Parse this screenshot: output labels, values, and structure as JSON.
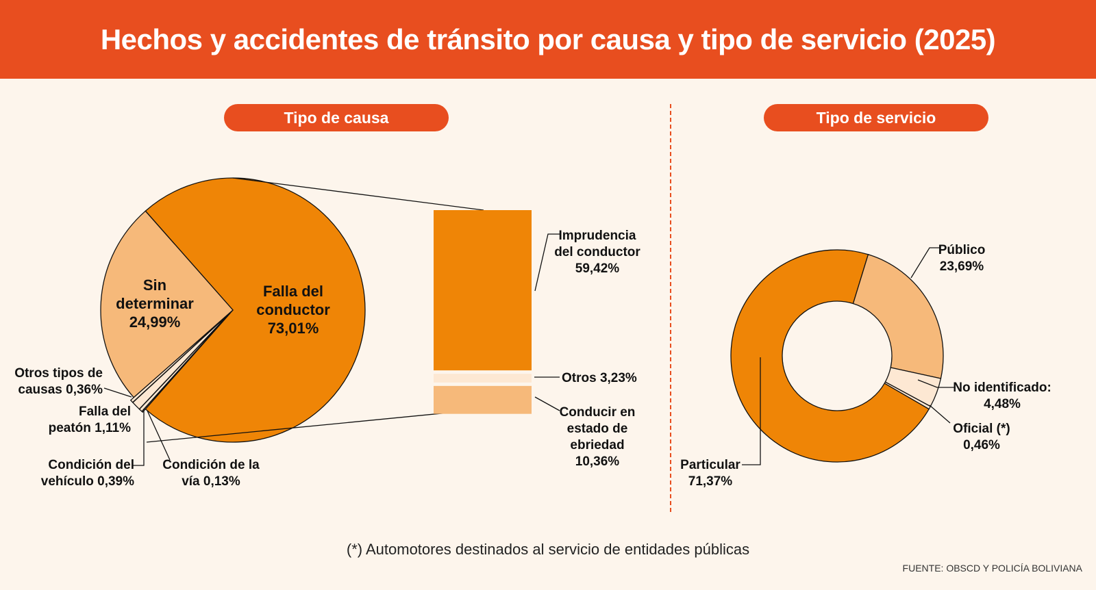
{
  "title": "Hechos y accidentes de tránsito por causa y tipo de servicio (2025)",
  "footnote": "(*) Automotores destinados al servicio de entidades públicas",
  "source": "FUENTE: OBSCD Y POLICÍA BOLIVIANA",
  "colors": {
    "header": "#e84e1f",
    "background": "#fdf5ec",
    "orange": "#ef8506",
    "light": "#f6b97a",
    "pale": "#fde8d3"
  },
  "chart_data": [
    {
      "type": "pie",
      "title": "Tipo de causa",
      "slices": [
        {
          "name": "Falla del conductor",
          "value": 73.01,
          "label": [
            "Falla del",
            "conductor",
            "73,01%"
          ]
        },
        {
          "name": "Condición de la vía",
          "value": 0.13,
          "label": [
            "Condición de la",
            "vía 0,13%"
          ]
        },
        {
          "name": "Condición del vehículo",
          "value": 0.39,
          "label": [
            "Condición del",
            "vehículo 0,39%"
          ]
        },
        {
          "name": "Falla del peatón",
          "value": 1.11,
          "label": [
            "Falla del",
            "peatón 1,11%"
          ]
        },
        {
          "name": "Otros tipos de causas",
          "value": 0.36,
          "label": [
            "Otros tipos de",
            "causas 0,36%"
          ]
        },
        {
          "name": "Sin determinar",
          "value": 24.99,
          "label": [
            "Sin",
            "determinar",
            "24,99%"
          ]
        }
      ],
      "breakdown": {
        "of": "Falla del conductor",
        "type": "stacked-bar",
        "segments": [
          {
            "name": "Imprudencia del conductor",
            "value": 59.42,
            "label": [
              "Imprudencia",
              "del conductor",
              "59,42%"
            ]
          },
          {
            "name": "Otros",
            "value": 3.23,
            "label": [
              "Otros 3,23%"
            ]
          },
          {
            "name": "Conducir en estado de ebriedad",
            "value": 10.36,
            "label": [
              "Conducir en",
              "estado de",
              "ebriedad",
              "10,36%"
            ]
          }
        ]
      }
    },
    {
      "type": "donut",
      "title": "Tipo de servicio",
      "slices": [
        {
          "name": "Público",
          "value": 23.69,
          "label": [
            "Público",
            "23,69%"
          ]
        },
        {
          "name": "No identificado",
          "value": 4.48,
          "label": [
            "No identificado:",
            "4,48%"
          ]
        },
        {
          "name": "Oficial (*)",
          "value": 0.46,
          "label": [
            "Oficial (*)",
            "0,46%"
          ]
        },
        {
          "name": "Particular",
          "value": 71.37,
          "label": [
            "Particular",
            "71,37%"
          ]
        }
      ]
    }
  ]
}
